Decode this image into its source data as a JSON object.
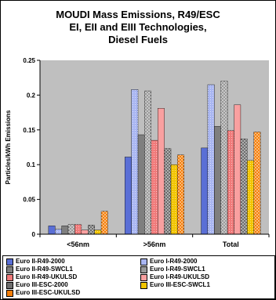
{
  "chart_data": {
    "type": "bar",
    "title_lines": [
      "MOUDI Mass Emissions, R49/ESC",
      "EI, EII and EIII Technologies,",
      "Diesel Fuels"
    ],
    "ylabel": "Particles/kWh Emissions",
    "xlabel": "",
    "ylim": [
      0,
      0.25
    ],
    "yticks": [
      "0",
      "0.05",
      "0.1",
      "0.15",
      "0.2",
      "0.25"
    ],
    "ytick_values": [
      0,
      0.05,
      0.1,
      0.15,
      0.2,
      0.25
    ],
    "categories": [
      "<56nm",
      ">56nm",
      "Total"
    ],
    "legend_placement": "bottom",
    "grid": false,
    "series": [
      {
        "name": "Euro II-R49-2000",
        "values": [
          0.012,
          0.111,
          0.124
        ],
        "color": "#5a6fd6"
      },
      {
        "name": "Euro I-R49-2000",
        "values": [
          0.007,
          0.208,
          0.215
        ],
        "color": "#a9b6f2"
      },
      {
        "name": "Euro II-R49-SWCL1",
        "values": [
          0.012,
          0.143,
          0.155
        ],
        "color": "#7f7f7f"
      },
      {
        "name": "Euro I-R49-SWCL1",
        "values": [
          0.014,
          0.206,
          0.22
        ],
        "color": "#9a9a9a"
      },
      {
        "name": "Euro II-R49-UKULSD",
        "values": [
          0.014,
          0.135,
          0.149
        ],
        "color": "#f07a7a"
      },
      {
        "name": "Euro I-R49-UKULSD",
        "values": [
          0.006,
          0.181,
          0.186
        ],
        "color": "#f9a0a0"
      },
      {
        "name": "Euro III-ESC-2000",
        "values": [
          0.013,
          0.123,
          0.137
        ],
        "color": "#6e6e6e"
      },
      {
        "name": "Euro III-ESC-SWCL1",
        "values": [
          0.006,
          0.1,
          0.106
        ],
        "color": "#f2c500"
      },
      {
        "name": "Euro III-ESC-UKULSD",
        "values": [
          0.033,
          0.114,
          0.147
        ],
        "color": "#f57f0a"
      }
    ]
  }
}
